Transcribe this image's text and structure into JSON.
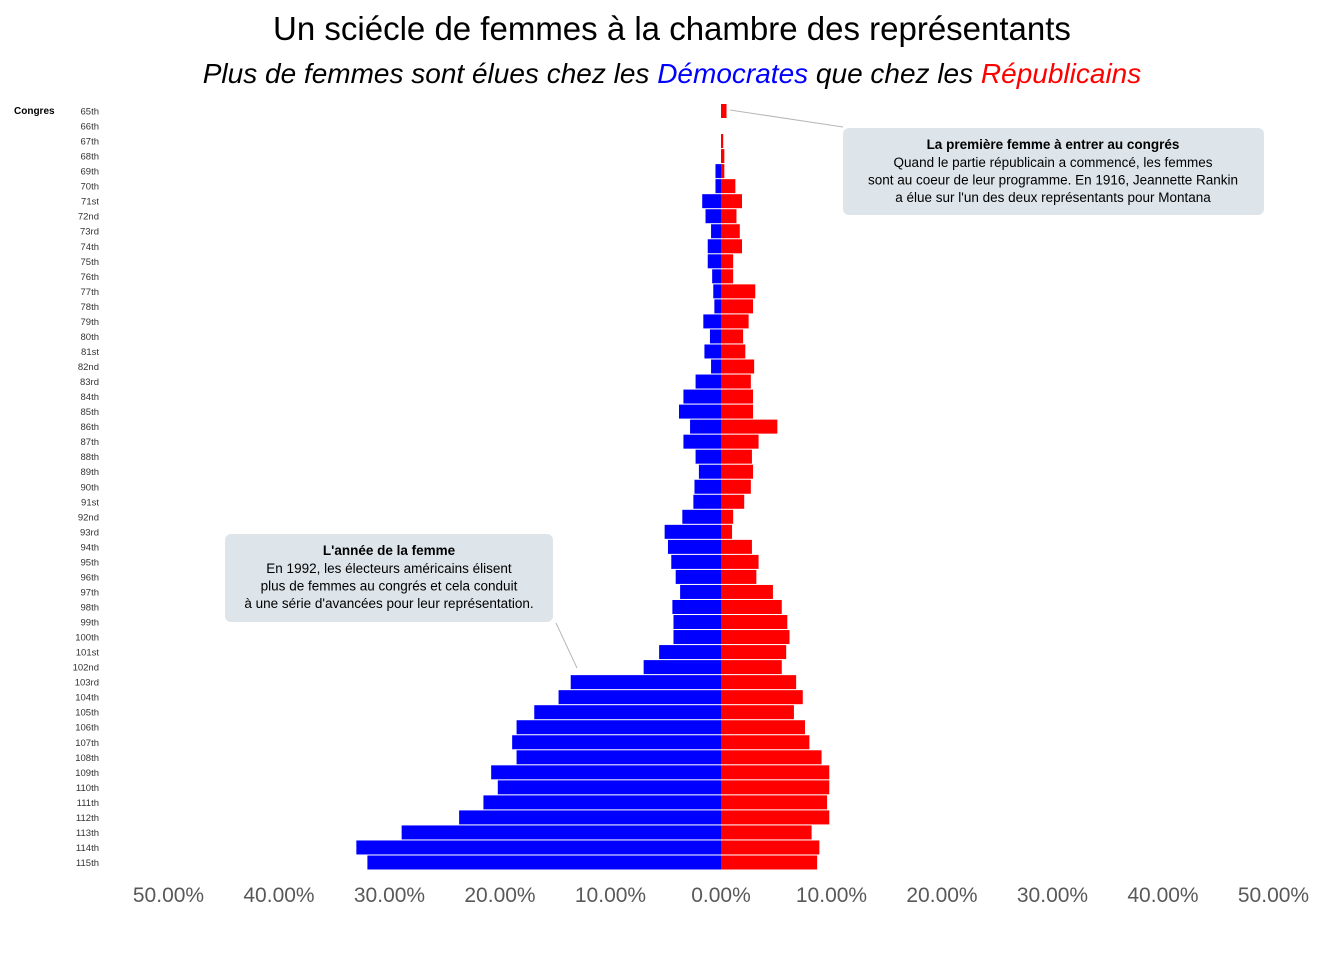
{
  "chart_data": {
    "type": "bar",
    "orientation": "horizontal-diverging",
    "title": "Un sciécle de femmes à la chambre des représentants",
    "subtitle": {
      "part1": "Plus de femmes sont élues chez les ",
      "dem": "Démocrates",
      "part2": " que chez les ",
      "rep": "Républicains"
    },
    "ylabel": "Congres",
    "xlim": [
      -50,
      50
    ],
    "x_ticks": [
      "50.00%",
      "40.00%",
      "30.00%",
      "20.00%",
      "10.00%",
      "0.00%",
      "10.00%",
      "20.00%",
      "30.00%",
      "40.00%",
      "50.00%"
    ],
    "categories": [
      "65th",
      "66th",
      "67th",
      "68th",
      "69th",
      "70th",
      "71st",
      "72nd",
      "73rd",
      "74th",
      "75th",
      "76th",
      "77th",
      "78th",
      "79th",
      "80th",
      "81st",
      "82nd",
      "83rd",
      "84th",
      "85th",
      "86th",
      "87th",
      "88th",
      "89th",
      "90th",
      "91st",
      "92nd",
      "93rd",
      "94th",
      "95th",
      "96th",
      "97th",
      "98th",
      "99th",
      "100th",
      "101st",
      "102nd",
      "103rd",
      "104th",
      "105th",
      "106th",
      "107th",
      "108th",
      "109th",
      "110th",
      "111th",
      "112th",
      "113th",
      "114th",
      "115th"
    ],
    "series": [
      {
        "name": "Démocrates",
        "color": "#0000ff",
        "values": [
          0,
          0,
          0,
          0,
          0.5,
          0.5,
          1.7,
          1.4,
          0.9,
          1.2,
          1.2,
          0.8,
          0.7,
          0.6,
          1.6,
          1.0,
          1.5,
          0.9,
          2.3,
          3.4,
          3.8,
          2.8,
          3.4,
          2.3,
          2.0,
          2.4,
          2.5,
          3.5,
          5.1,
          4.8,
          4.5,
          4.1,
          3.7,
          4.4,
          4.3,
          4.3,
          5.6,
          7.0,
          13.6,
          14.7,
          16.9,
          18.5,
          18.9,
          18.5,
          20.8,
          20.2,
          21.5,
          23.7,
          28.9,
          33.0,
          32.0
        ]
      },
      {
        "name": "Républicains",
        "color": "#ff0000",
        "values": [
          0.5,
          0,
          0.2,
          0.3,
          0.3,
          1.3,
          1.9,
          1.4,
          1.7,
          1.9,
          1.1,
          1.1,
          3.1,
          2.9,
          2.5,
          2.0,
          2.2,
          3.0,
          2.7,
          2.9,
          2.9,
          5.1,
          3.4,
          2.8,
          2.9,
          2.7,
          2.1,
          1.1,
          1.0,
          2.8,
          3.4,
          3.2,
          4.7,
          5.5,
          6.0,
          6.2,
          5.9,
          5.5,
          6.8,
          7.4,
          6.6,
          7.6,
          8.0,
          9.1,
          9.8,
          9.8,
          9.6,
          9.8,
          8.2,
          8.9,
          8.7
        ]
      }
    ],
    "annotations": [
      {
        "title": "La première femme à entrer au congrés",
        "lines": [
          "Quand le partie républicain a commencé, les femmes",
          "sont au coeur de leur programme. En 1916, Jeannette Rankin",
          "a élue sur l'un des deux représentants pour Montana"
        ],
        "target": "65th"
      },
      {
        "title": "L'année de la femme",
        "lines": [
          "En 1992, les électeurs américains élisent",
          "plus de femmes au congrés et cela conduit",
          "à une série d'avancées pour leur représentation."
        ],
        "target": "103rd"
      }
    ]
  }
}
